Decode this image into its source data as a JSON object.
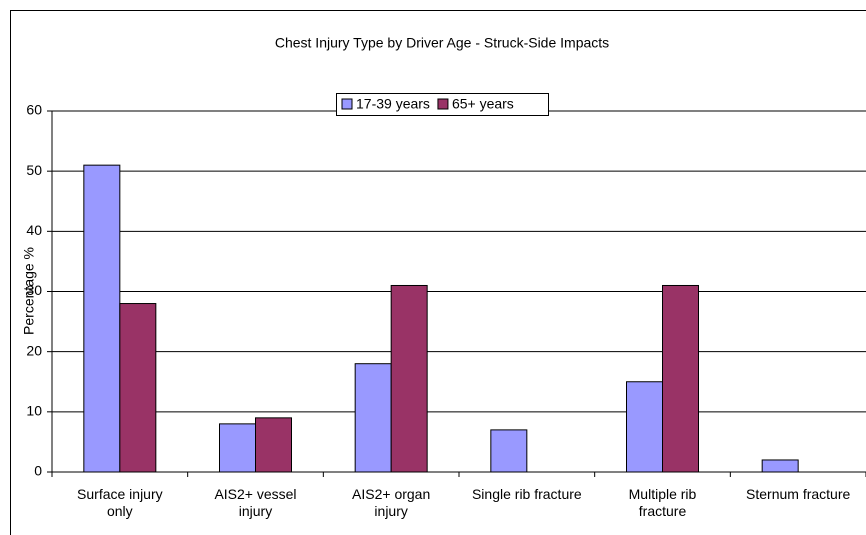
{
  "chart_data": {
    "type": "bar",
    "title": "Chest Injury Type by Driver Age - Struck-Side Impacts",
    "y_label": "Percentage %",
    "categories": [
      "Surface injury only",
      "AIS2+ vessel injury",
      "AIS2+ organ injury",
      "Single rib fracture",
      "Multiple rib fracture",
      "Sternum fracture"
    ],
    "series": [
      {
        "name": "17-39 years",
        "color": "#9999ff",
        "values": [
          51,
          8,
          18,
          7,
          15,
          2
        ]
      },
      {
        "name": "65+ years",
        "color": "#993366",
        "values": [
          28,
          9,
          31,
          0,
          31,
          0
        ]
      }
    ],
    "ylim": [
      0,
      60
    ],
    "yticks": [
      0,
      10,
      20,
      30,
      40,
      50,
      60
    ],
    "grid": true,
    "legend": "top"
  }
}
